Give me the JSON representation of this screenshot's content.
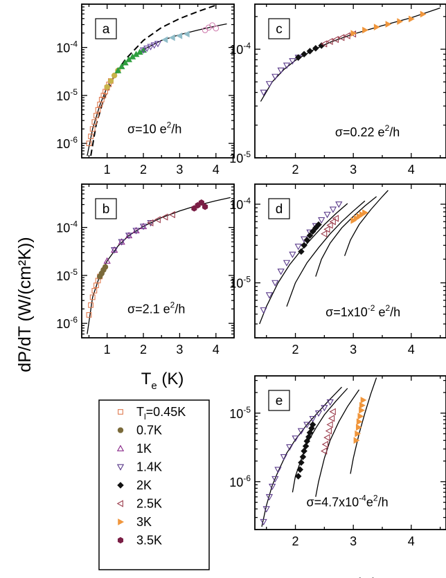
{
  "figure": {
    "ylabel": "dP/dT (W/(cm²K))",
    "legend": {
      "title_prefix": "T",
      "title_sub": "l",
      "title_suffix": "=0.45K",
      "entries": [
        {
          "label": "0.7K",
          "marker": "circle",
          "color": "#7a6a3a"
        },
        {
          "label": "1K",
          "marker": "triangle-up-open",
          "color": "#8a2a8a"
        },
        {
          "label": "1.4K",
          "marker": "triangle-down-open",
          "color": "#5a3a8a"
        },
        {
          "label": "2K",
          "marker": "diamond",
          "color": "#111111"
        },
        {
          "label": "2.5K",
          "marker": "triangle-left-open",
          "color": "#9a3a4a"
        },
        {
          "label": "3K",
          "marker": "triangle-right",
          "color": "#f0963c"
        },
        {
          "label": "3.5K",
          "marker": "hexagon",
          "color": "#7a1e45"
        }
      ],
      "first_marker": "square-open",
      "first_color": "#e07a50"
    }
  },
  "chart_data": [
    {
      "panel": "a",
      "type": "scatter",
      "title": "",
      "xlabel": "",
      "ylabel": "",
      "annotation": {
        "prefix": "σ=10 e",
        "sup": "2",
        "suffix": "/h"
      },
      "xlim": [
        0.3,
        4.5
      ],
      "ylim": [
        5e-07,
        0.0008
      ],
      "yscale": "log",
      "x_ticks": [
        "1",
        "2",
        "3",
        "4"
      ],
      "y_ticks": [
        {
          "v": 1e-06,
          "exp": "-6"
        },
        {
          "v": 1e-05,
          "exp": "-5"
        },
        {
          "v": 0.0001,
          "exp": "-4"
        }
      ],
      "series": [
        {
          "marker": "square-open",
          "color": "#e07a50",
          "x": [
            0.5,
            0.55,
            0.6,
            0.65,
            0.7,
            0.75,
            0.8,
            0.85,
            0.9,
            0.95,
            1.0,
            1.05,
            1.1
          ],
          "y": [
            1e-06,
            1.4e-06,
            2e-06,
            2.8e-06,
            3.8e-06,
            5e-06,
            6.5e-06,
            8.2e-06,
            1e-05,
            1.2e-05,
            1.45e-05,
            1.7e-05,
            2e-05
          ]
        },
        {
          "marker": "circle",
          "color": "#c9b44a",
          "x": [
            1.0,
            1.1,
            1.2,
            1.3
          ],
          "y": [
            1.5e-05,
            2e-05,
            2.6e-05,
            3.3e-05
          ]
        },
        {
          "marker": "triangle-up",
          "color": "#2e9e3e",
          "x": [
            1.3,
            1.4,
            1.5,
            1.6,
            1.7,
            1.8,
            1.9,
            2.0
          ],
          "y": [
            3.3e-05,
            4e-05,
            4.8e-05,
            5.6e-05,
            6.4e-05,
            7.2e-05,
            8e-05,
            8.8e-05
          ]
        },
        {
          "marker": "triangle-down-open",
          "color": "#6a4aa0",
          "x": [
            2.0,
            2.1,
            2.2,
            2.3,
            2.4
          ],
          "y": [
            8.8e-05,
            9.6e-05,
            0.000104,
            0.000112,
            0.00012
          ]
        },
        {
          "marker": "triangle-left",
          "color": "#8fbcc8",
          "x": [
            2.6,
            2.8,
            3.0,
            3.2
          ],
          "y": [
            0.000145,
            0.00016,
            0.000175,
            0.00019
          ]
        },
        {
          "marker": "circle-open",
          "color": "#d080b0",
          "x": [
            3.7,
            3.8,
            3.9,
            4.0
          ],
          "y": [
            0.00023,
            0.00026,
            0.00029,
            0.00025
          ]
        }
      ],
      "fit_lines": [
        {
          "style": "solid",
          "x": [
            0.45,
            0.6,
            0.8,
            1.0,
            1.3,
            1.6,
            2.0,
            2.5,
            3.0,
            3.5,
            4.0,
            4.3
          ],
          "y": [
            5.5e-07,
            2e-06,
            6.3e-06,
            1.5e-05,
            3.3e-05,
            5.6e-05,
            9e-05,
            0.00014,
            0.000185,
            0.00023,
            0.00028,
            0.00031
          ]
        },
        {
          "style": "dashed",
          "x": [
            0.55,
            0.7,
            0.9,
            1.2,
            1.5,
            2.0,
            2.5,
            3.0,
            3.5,
            4.0
          ],
          "y": [
            5.5e-07,
            2.5e-06,
            8e-06,
            2.6e-05,
            5.6e-05,
            0.00014,
            0.00026,
            0.0004,
            0.00056,
            0.00076
          ]
        }
      ]
    },
    {
      "panel": "b",
      "type": "scatter",
      "title": "",
      "xlabel": "T_e (K)",
      "xlabel_main": "T",
      "xlabel_sub": "e",
      "xlabel_suffix": " (K)",
      "ylabel": "",
      "annotation": {
        "prefix": "σ=2.1 e",
        "sup": "2",
        "suffix": "/h"
      },
      "xlim": [
        0.3,
        4.5
      ],
      "ylim": [
        5e-07,
        0.0008
      ],
      "yscale": "log",
      "x_ticks": [
        "1",
        "2",
        "3",
        "4"
      ],
      "y_ticks": [
        {
          "v": 1e-06,
          "exp": "-6"
        },
        {
          "v": 1e-05,
          "exp": "-5"
        },
        {
          "v": 0.0001,
          "exp": "-4"
        }
      ],
      "series": [
        {
          "marker": "square-open",
          "color": "#e07a50",
          "x": [
            0.5,
            0.55,
            0.6,
            0.65,
            0.7,
            0.75,
            0.8
          ],
          "y": [
            1.5e-06,
            2.4e-06,
            3.5e-06,
            4.8e-06,
            6.2e-06,
            7.8e-06,
            9.5e-06
          ]
        },
        {
          "marker": "circle",
          "color": "#7a6a3a",
          "x": [
            0.8,
            0.85,
            0.9,
            0.95
          ],
          "y": [
            9.5e-06,
            1.1e-05,
            1.3e-05,
            1.5e-05
          ]
        },
        {
          "marker": "triangle-up-open",
          "color": "#8a2a8a",
          "x": [
            1.0,
            1.2,
            1.4,
            1.6,
            1.8,
            2.0
          ],
          "y": [
            2e-05,
            3.4e-05,
            5e-05,
            6.8e-05,
            8.6e-05,
            0.000105
          ]
        },
        {
          "marker": "triangle-down-open",
          "color": "#5a3a8a",
          "x": [
            1.2,
            1.4,
            1.6,
            1.8,
            2.0,
            2.2
          ],
          "y": [
            3.4e-05,
            5e-05,
            6.8e-05,
            8.6e-05,
            0.000105,
            0.000125
          ]
        },
        {
          "marker": "triangle-left-open",
          "color": "#9a3a4a",
          "x": [
            2.2,
            2.4,
            2.6,
            2.8
          ],
          "y": [
            0.000125,
            0.000145,
            0.000165,
            0.000185
          ]
        },
        {
          "marker": "hexagon",
          "color": "#7a1e45",
          "x": [
            3.4,
            3.5,
            3.6,
            3.7
          ],
          "y": [
            0.00025,
            0.00029,
            0.00033,
            0.00027
          ]
        }
      ],
      "fit_lines": [
        {
          "style": "solid",
          "x": [
            0.45,
            0.6,
            0.8,
            1.0,
            1.3,
            1.6,
            2.0,
            2.5,
            3.0,
            3.5,
            4.0,
            4.4
          ],
          "y": [
            6e-07,
            3.5e-06,
            1e-05,
            2e-05,
            4.1e-05,
            6.8e-05,
            0.000105,
            0.00016,
            0.00022,
            0.00029,
            0.00036,
            0.00042
          ]
        }
      ]
    },
    {
      "panel": "c",
      "type": "scatter",
      "title": "",
      "xlabel": "",
      "ylabel": "",
      "annotation": {
        "prefix": "σ=0.22 e",
        "sup": "2",
        "suffix": "/h"
      },
      "xlim": [
        1.3,
        4.6
      ],
      "ylim": [
        1e-05,
        0.00026
      ],
      "yscale": "log",
      "x_ticks": [
        "2",
        "3",
        "4"
      ],
      "y_ticks": [
        {
          "v": 1e-05,
          "exp": "-5"
        },
        {
          "v": 0.0001,
          "exp": "-4"
        }
      ],
      "series": [
        {
          "marker": "triangle-down-open",
          "color": "#5a3a8a",
          "x": [
            1.45,
            1.55,
            1.65,
            1.75,
            1.85,
            1.95,
            2.05
          ],
          "y": [
            4e-05,
            4.8e-05,
            5.6e-05,
            6.4e-05,
            7.1e-05,
            7.8e-05,
            8.4e-05
          ]
        },
        {
          "marker": "diamond",
          "color": "#111111",
          "x": [
            2.05,
            2.15,
            2.25,
            2.35,
            2.45
          ],
          "y": [
            8.4e-05,
            9e-05,
            9.6e-05,
            0.000102,
            0.000108
          ]
        },
        {
          "marker": "triangle-left-open",
          "color": "#9a3a4a",
          "x": [
            2.5,
            2.6,
            2.7,
            2.8,
            2.9,
            3.0
          ],
          "y": [
            0.000112,
            0.000118,
            0.000123,
            0.000128,
            0.000133,
            0.000138
          ]
        },
        {
          "marker": "triangle-right",
          "color": "#f0963c",
          "x": [
            3.0,
            3.2,
            3.4,
            3.6,
            3.8,
            4.0,
            4.2
          ],
          "y": [
            0.00014,
            0.00015,
            0.00016,
            0.00017,
            0.00018,
            0.00019,
            0.00021
          ]
        }
      ],
      "fit_lines": [
        {
          "style": "solid",
          "x": [
            1.4,
            1.6,
            1.8,
            2.0,
            2.3,
            2.6,
            3.0,
            3.5,
            4.0,
            4.5
          ],
          "y": [
            3.3e-05,
            5e-05,
            6.5e-05,
            7.9e-05,
            9.8e-05,
            0.000116,
            0.000138,
            0.000165,
            0.000195,
            0.00024
          ]
        }
      ]
    },
    {
      "panel": "d",
      "type": "scatter",
      "title": "",
      "xlabel": "",
      "ylabel": "",
      "annotation": {
        "prefix": "σ=1x10",
        "sup": "-2",
        "suffix": " e",
        "sup2": "2",
        "suffix2": "/h"
      },
      "xlim": [
        1.3,
        4.6
      ],
      "ylim": [
        2e-06,
        0.00018
      ],
      "yscale": "log",
      "x_ticks": [
        "2",
        "3",
        "4"
      ],
      "y_ticks": [
        {
          "v": 1e-05,
          "exp": "-5"
        },
        {
          "v": 0.0001,
          "exp": "-4"
        }
      ],
      "series": [
        {
          "marker": "triangle-down-open",
          "color": "#5a3a8a",
          "x": [
            1.45,
            1.55,
            1.65,
            1.75,
            1.85,
            1.95,
            2.05,
            2.15,
            2.25,
            2.35,
            2.45,
            2.55,
            2.65,
            2.75
          ],
          "y": [
            4.5e-06,
            7e-06,
            1e-05,
            1.4e-05,
            1.8e-05,
            2.3e-05,
            2.9e-05,
            3.6e-05,
            4.4e-05,
            5.3e-05,
            6.3e-05,
            7.4e-05,
            8.6e-05,
            0.0001
          ]
        },
        {
          "marker": "diamond",
          "color": "#111111",
          "x": [
            2.1,
            2.15,
            2.2,
            2.25,
            2.3,
            2.35,
            2.4
          ],
          "y": [
            2.5e-05,
            3e-05,
            3.5e-05,
            4e-05,
            4.5e-05,
            5e-05,
            5.5e-05
          ]
        },
        {
          "marker": "triangle-left-open",
          "color": "#9a3a4a",
          "x": [
            2.5,
            2.55,
            2.6,
            2.65,
            2.7
          ],
          "y": [
            4.2e-05,
            4.8e-05,
            5.4e-05,
            6e-05,
            6.6e-05
          ]
        },
        {
          "marker": "triangle-right",
          "color": "#f0963c",
          "x": [
            3.0,
            3.05,
            3.1,
            3.15,
            3.2
          ],
          "y": [
            6.2e-05,
            6.6e-05,
            7e-05,
            7.4e-05,
            7.8e-05
          ]
        }
      ],
      "fit_lines": [
        {
          "style": "solid",
          "x": [
            1.38,
            1.5,
            1.7,
            1.9,
            2.1,
            2.3,
            2.5,
            2.7,
            2.9
          ],
          "y": [
            3e-06,
            5e-06,
            1e-05,
            1.7e-05,
            2.6e-05,
            3.8e-05,
            5.5e-05,
            7.6e-05,
            0.000102
          ]
        },
        {
          "style": "solid",
          "x": [
            1.85,
            2.0,
            2.2,
            2.4,
            2.6,
            2.8,
            3.0,
            3.2
          ],
          "y": [
            5e-06,
            1e-05,
            1.8e-05,
            2.8e-05,
            4.2e-05,
            6e-05,
            8.2e-05,
            0.00011
          ]
        },
        {
          "style": "solid",
          "x": [
            2.35,
            2.45,
            2.6,
            2.8,
            3.0,
            3.2,
            3.4
          ],
          "y": [
            1.2e-05,
            2e-05,
            3.2e-05,
            5e-05,
            7e-05,
            9.5e-05,
            0.000125
          ]
        },
        {
          "style": "solid",
          "x": [
            2.85,
            2.95,
            3.1,
            3.3,
            3.5,
            3.6
          ],
          "y": [
            2.2e-05,
            3.5e-05,
            5.5e-05,
            8.5e-05,
            0.000125,
            0.00015
          ]
        }
      ]
    },
    {
      "panel": "e",
      "type": "scatter",
      "title": "",
      "xlabel": "T_e (K)",
      "xlabel_main": "T",
      "xlabel_sub": "e",
      "xlabel_suffix": " (K)",
      "ylabel": "",
      "annotation": {
        "prefix": "σ=4.7x10",
        "sup": "-4",
        "suffix": "e",
        "sup2": "2",
        "suffix2": "/h"
      },
      "xlim": [
        1.3,
        4.6
      ],
      "ylim": [
        2e-07,
        3.5e-05
      ],
      "yscale": "log",
      "x_ticks": [
        "2",
        "3",
        "4"
      ],
      "y_ticks": [
        {
          "v": 1e-06,
          "exp": "-6"
        },
        {
          "v": 1e-05,
          "exp": "-5"
        }
      ],
      "series": [
        {
          "marker": "triangle-down-open",
          "color": "#5a3a8a",
          "x": [
            1.45,
            1.5,
            1.55,
            1.6,
            1.65,
            1.7,
            1.8,
            1.9,
            2.0,
            2.1,
            2.2,
            2.3,
            2.4,
            2.5,
            2.6
          ],
          "y": [
            2.6e-07,
            4e-07,
            6e-07,
            8.5e-07,
            1.1e-06,
            1.5e-06,
            2.3e-06,
            3.2e-06,
            4.3e-06,
            5.5e-06,
            6.8e-06,
            8.3e-06,
            1e-05,
            1.2e-05,
            1.45e-05
          ]
        },
        {
          "marker": "diamond",
          "color": "#111111",
          "x": [
            2.05,
            2.08,
            2.1,
            2.13,
            2.15,
            2.18,
            2.2,
            2.23,
            2.25,
            2.28,
            2.3
          ],
          "y": [
            1.2e-06,
            1.5e-06,
            1.9e-06,
            2.3e-06,
            2.8e-06,
            3.3e-06,
            3.9e-06,
            4.5e-06,
            5.2e-06,
            6e-06,
            6.8e-06
          ]
        },
        {
          "marker": "triangle-left-open",
          "color": "#9a3a4a",
          "x": [
            2.5,
            2.52,
            2.55,
            2.58,
            2.6,
            2.63,
            2.65
          ],
          "y": [
            2.8e-06,
            3.5e-06,
            4.4e-06,
            5.5e-06,
            6.8e-06,
            8.4e-06,
            1.05e-05
          ]
        },
        {
          "marker": "triangle-right",
          "color": "#f0963c",
          "x": [
            3.05,
            3.07,
            3.09,
            3.1,
            3.12,
            3.14,
            3.15,
            3.17
          ],
          "y": [
            4e-06,
            5e-06,
            6.2e-06,
            7.5e-06,
            9e-06,
            1.1e-05,
            1.3e-05,
            1.55e-05
          ]
        }
      ],
      "fit_lines": [
        {
          "style": "solid",
          "x": [
            1.42,
            1.5,
            1.6,
            1.7,
            1.85,
            2.0,
            2.2,
            2.4,
            2.6,
            2.8
          ],
          "y": [
            2.2e-07,
            4.5e-07,
            8.8e-07,
            1.4e-06,
            2.6e-06,
            4.1e-06,
            6.8e-06,
            1.05e-05,
            1.6e-05,
            2.4e-05
          ]
        },
        {
          "style": "solid",
          "x": [
            1.95,
            2.0,
            2.1,
            2.2,
            2.35,
            2.5,
            2.7,
            2.9
          ],
          "y": [
            7e-07,
            1.2e-06,
            2.1e-06,
            3.6e-06,
            6e-06,
            9.5e-06,
            1.5e-05,
            2.3e-05
          ]
        },
        {
          "style": "solid",
          "x": [
            2.35,
            2.4,
            2.5,
            2.6,
            2.75,
            2.9,
            3.1
          ],
          "y": [
            6e-07,
            1e-06,
            2.2e-06,
            4e-06,
            7.5e-06,
            1.25e-05,
            2.2e-05
          ]
        },
        {
          "style": "solid",
          "x": [
            2.95,
            3.0,
            3.1,
            3.2,
            3.3,
            3.4
          ],
          "y": [
            1.3e-06,
            2.2e-06,
            5e-06,
            1e-05,
            1.9e-05,
            3.3e-05
          ]
        }
      ]
    }
  ]
}
